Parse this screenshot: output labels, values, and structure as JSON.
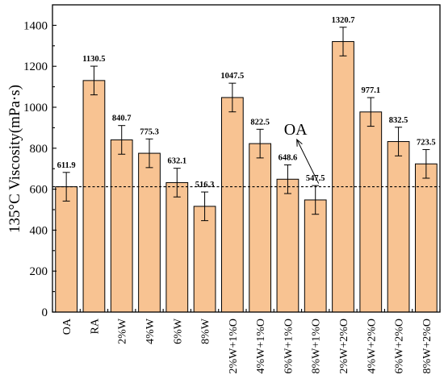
{
  "chart_data": {
    "type": "bar",
    "title": "",
    "xlabel": "",
    "ylabel": "135°C Viscosity(mPa·s)",
    "ylim": [
      0,
      1500
    ],
    "yticks": [
      0,
      200,
      400,
      600,
      800,
      1000,
      1200,
      1400
    ],
    "grid": false,
    "categories": [
      "OA",
      "RA",
      "2%W",
      "4%W",
      "6%W",
      "8%W",
      "2%W+1%O",
      "4%W+1%O",
      "6%W+1%O",
      "8%W+1%O",
      "2%W+2%O",
      "4%W+2%O",
      "6%W+2%O",
      "8%W+2%O"
    ],
    "values": [
      611.9,
      1130.5,
      840.7,
      775.3,
      632.1,
      516.3,
      1047.5,
      822.5,
      648.6,
      547.5,
      1320.7,
      977.1,
      832.5,
      723.5
    ],
    "data_labels": [
      "611.9",
      "1130.5",
      "840.7",
      "775.3",
      "632.1",
      "516.3",
      "1047.5",
      "822.5",
      "648.6",
      "547.5",
      "1320.7",
      "977.1",
      "832.5",
      "723.5"
    ],
    "errors": [
      70,
      70,
      70,
      70,
      70,
      70,
      70,
      70,
      70,
      70,
      70,
      70,
      70,
      70
    ],
    "reference_line": {
      "value": 611.9,
      "style": "dashed"
    },
    "annotation": {
      "text": "OA"
    },
    "colors": {
      "bar_fill": "#f8c392",
      "bar_edge": "#000000"
    }
  }
}
